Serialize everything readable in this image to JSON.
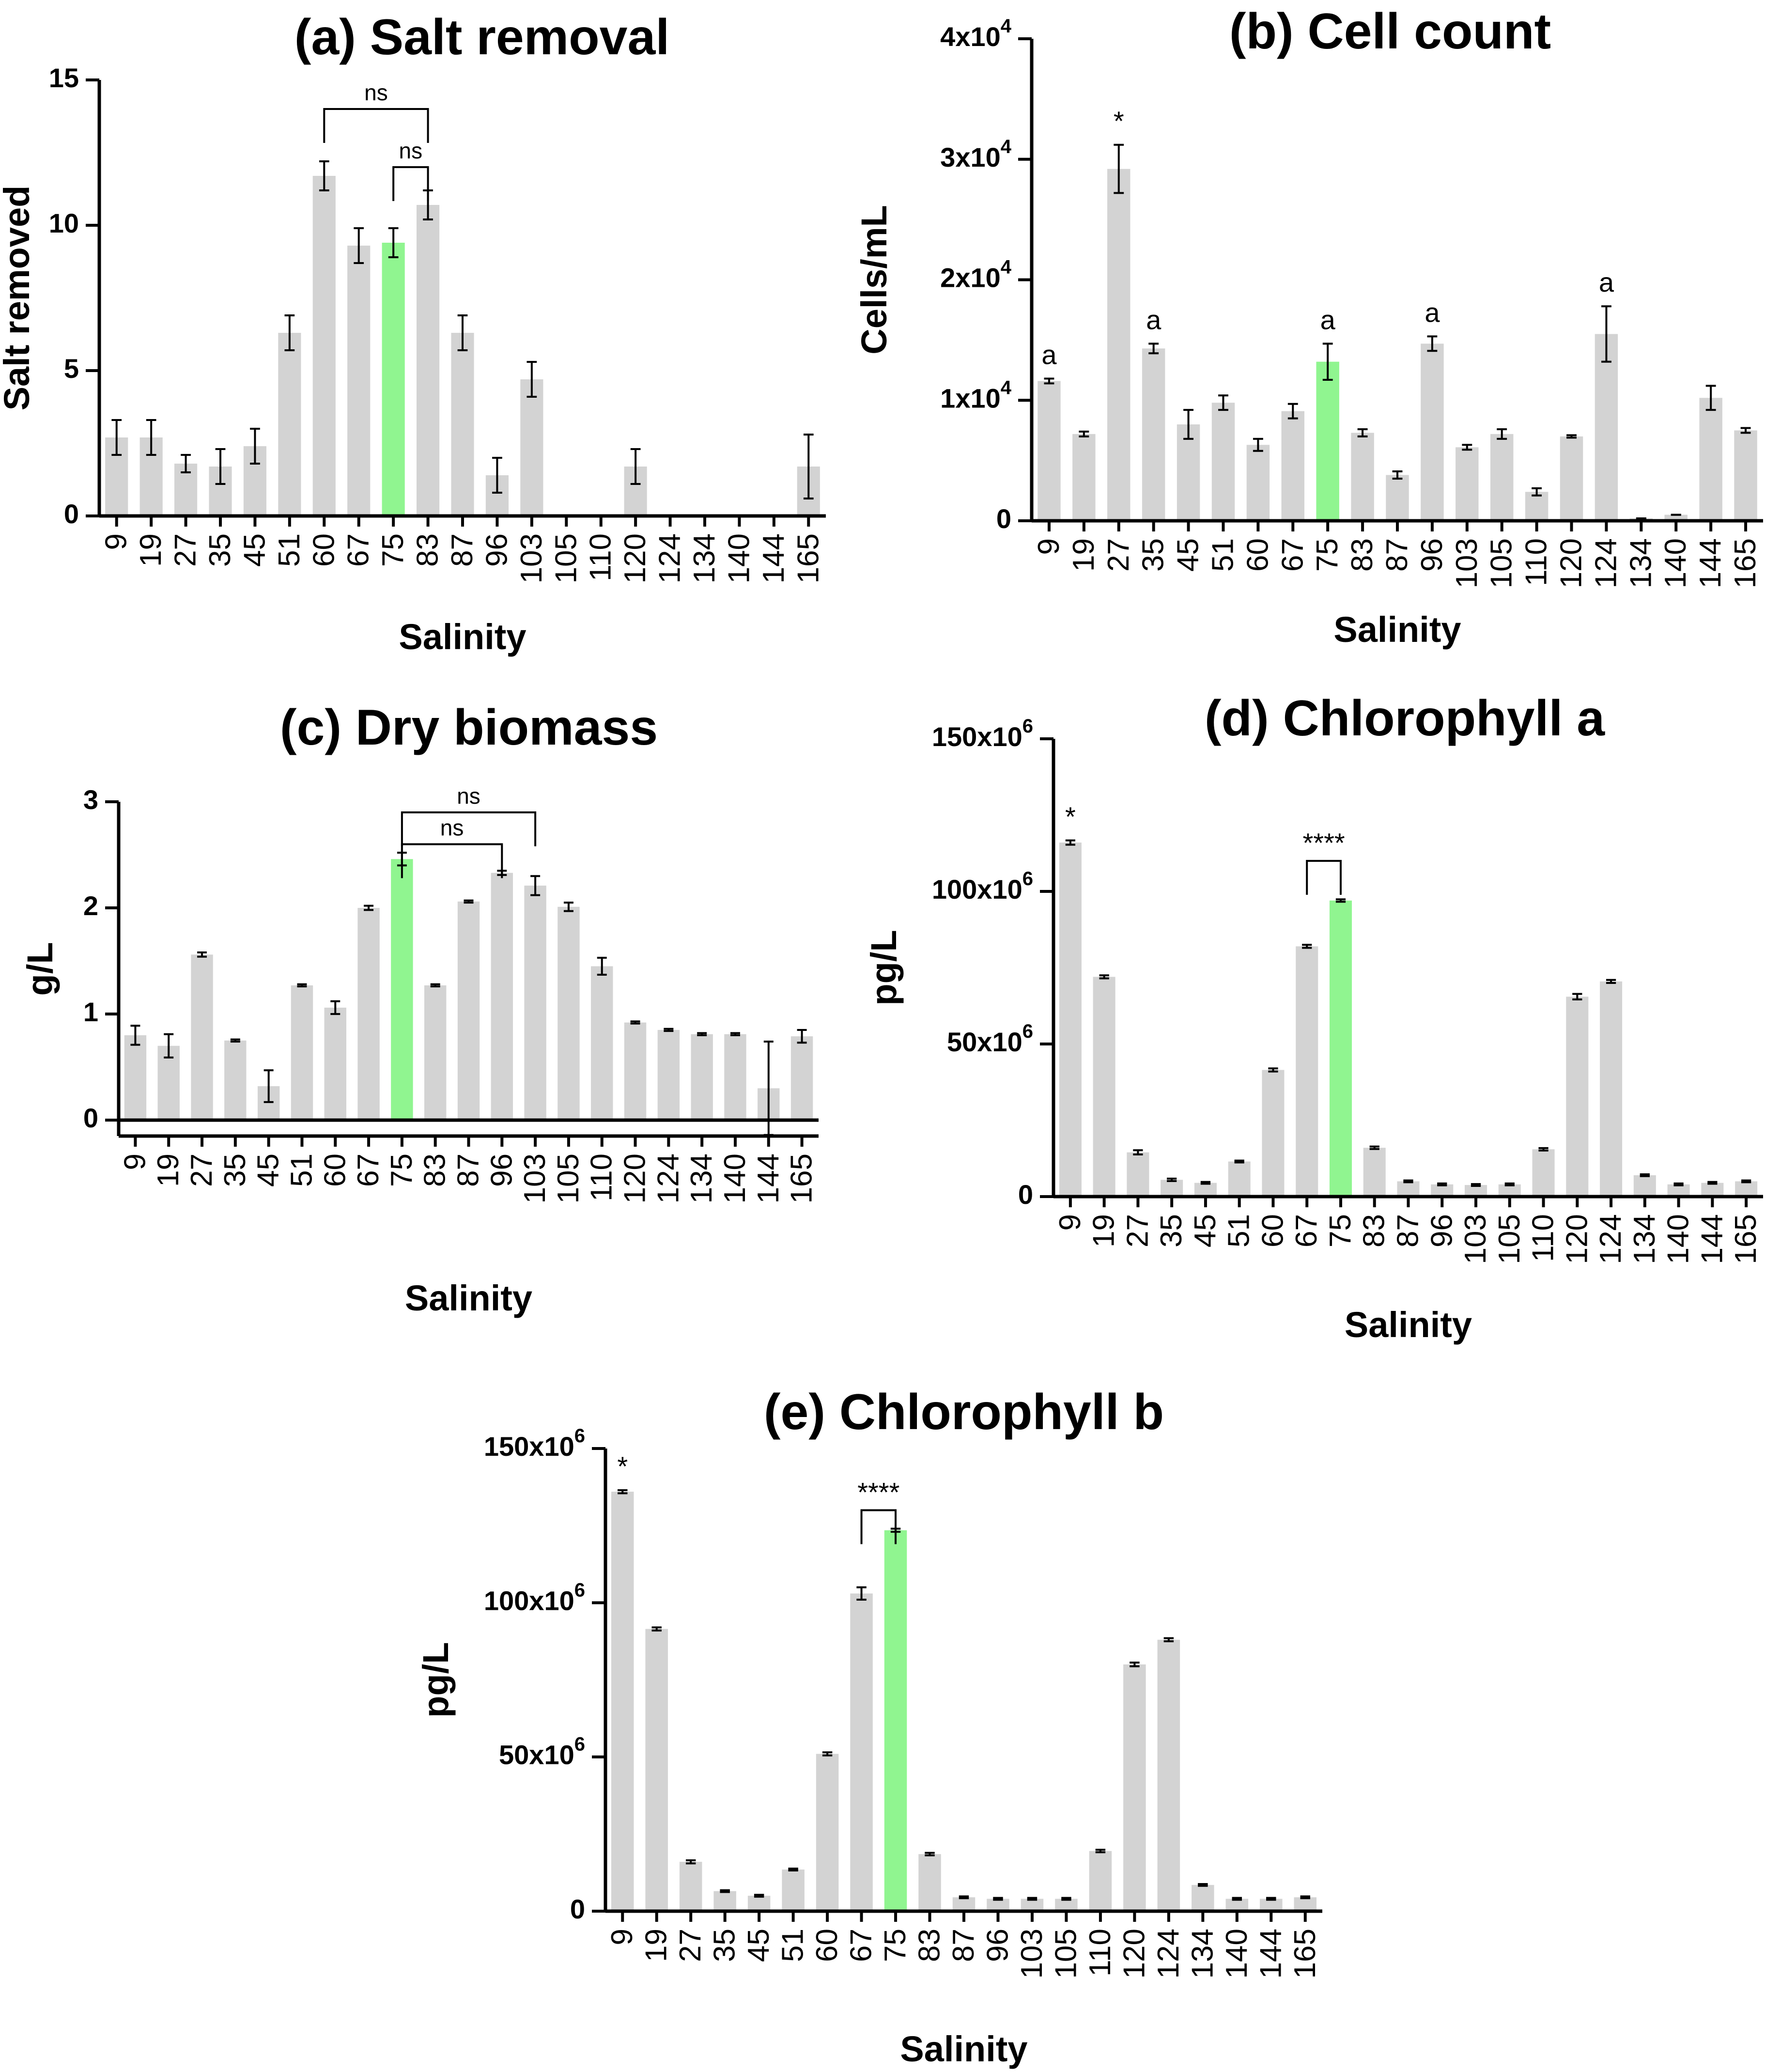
{
  "figure": {
    "colors": {
      "bar": "#d3d3d3",
      "highlight": "#90f590",
      "axis": "#000000"
    },
    "chart_data": [
      {
        "id": "a",
        "type": "bar",
        "title": "(a) Salt removal",
        "xlabel": "Salinity",
        "ylabel": "Salt removed",
        "ylim": [
          0,
          15
        ],
        "yticks": [
          0,
          5,
          10,
          15
        ],
        "ytick_labels": [
          "0",
          "5",
          "10",
          "15"
        ],
        "categories": [
          "9",
          "19",
          "27",
          "35",
          "45",
          "51",
          "60",
          "67",
          "75",
          "83",
          "87",
          "96",
          "103",
          "105",
          "110",
          "120",
          "124",
          "134",
          "140",
          "144",
          "165"
        ],
        "values": [
          2.7,
          2.7,
          1.8,
          1.7,
          2.4,
          6.3,
          11.7,
          9.3,
          9.4,
          10.7,
          6.3,
          1.4,
          4.7,
          0,
          0,
          1.7,
          0,
          0,
          0,
          0,
          1.7
        ],
        "errors": [
          0.6,
          0.6,
          0.3,
          0.6,
          0.6,
          0.6,
          0.5,
          0.6,
          0.5,
          0.5,
          0.6,
          0.6,
          0.6,
          0,
          0,
          0.6,
          0,
          0,
          0,
          0,
          1.1
        ],
        "highlight": "75",
        "annotations": [
          {
            "from": "60",
            "to": "83",
            "label": "ns",
            "level": 14.0
          },
          {
            "from": "75",
            "to": "83",
            "label": "ns",
            "level": 12.0
          }
        ]
      },
      {
        "id": "b",
        "type": "bar",
        "title": "(b) Cell count",
        "xlabel": "Salinity",
        "ylabel": "Cells/mL",
        "ylim": [
          0,
          40000
        ],
        "yticks": [
          0,
          10000,
          20000,
          30000,
          40000
        ],
        "ytick_labels": [
          "0",
          "1x10^4",
          "2x10^4",
          "3x10^4",
          "4x10^4"
        ],
        "categories": [
          "9",
          "19",
          "27",
          "35",
          "45",
          "51",
          "60",
          "67",
          "75",
          "83",
          "87",
          "96",
          "103",
          "105",
          "110",
          "120",
          "124",
          "134",
          "140",
          "144",
          "165"
        ],
        "values": [
          11600,
          7200,
          29200,
          14300,
          8000,
          9800,
          6300,
          9100,
          13200,
          7300,
          3800,
          14700,
          6100,
          7200,
          2400,
          7000,
          15500,
          200,
          500,
          10200,
          7500
        ],
        "errors": [
          200,
          200,
          2000,
          400,
          1200,
          600,
          500,
          600,
          1500,
          300,
          300,
          600,
          200,
          400,
          300,
          100,
          2300,
          0,
          0,
          1000,
          200
        ],
        "highlight": "75",
        "letters": [
          {
            "category": "9",
            "label": "a"
          },
          {
            "category": "27",
            "label": "*"
          },
          {
            "category": "35",
            "label": "a"
          },
          {
            "category": "75",
            "label": "a"
          },
          {
            "category": "96",
            "label": "a"
          },
          {
            "category": "124",
            "label": "a"
          }
        ]
      },
      {
        "id": "c",
        "type": "bar",
        "title": "(c) Dry biomass",
        "xlabel": "Salinity",
        "ylabel": "g/L",
        "ylim": [
          -0.15,
          3
        ],
        "yticks": [
          0,
          1,
          2,
          3
        ],
        "ytick_labels": [
          "0",
          "1",
          "2",
          "3"
        ],
        "categories": [
          "9",
          "19",
          "27",
          "35",
          "45",
          "51",
          "60",
          "67",
          "75",
          "83",
          "87",
          "96",
          "103",
          "105",
          "110",
          "120",
          "124",
          "134",
          "140",
          "144",
          "165"
        ],
        "values": [
          0.8,
          0.7,
          1.56,
          0.75,
          0.32,
          1.27,
          1.06,
          2.0,
          2.46,
          1.27,
          2.06,
          2.33,
          2.21,
          2.01,
          1.45,
          0.92,
          0.85,
          0.81,
          0.81,
          0.3,
          0.79
        ],
        "errors": [
          0.09,
          0.11,
          0.02,
          0.01,
          0.15,
          0.01,
          0.06,
          0.02,
          0.06,
          0.01,
          0.01,
          0.02,
          0.09,
          0.04,
          0.08,
          0.01,
          0.01,
          0.01,
          0.01,
          0.44,
          0.06
        ],
        "highlight": "75",
        "annotations": [
          {
            "from": "75",
            "to": "103",
            "label": "ns",
            "level": 2.9
          },
          {
            "from": "75",
            "to": "96",
            "label": "ns",
            "level": 2.6
          }
        ]
      },
      {
        "id": "d",
        "type": "bar",
        "title": "(d) Chlorophyll a",
        "xlabel": "Salinity",
        "ylabel": "pg/L",
        "ylim": [
          0,
          150000000
        ],
        "yticks": [
          0,
          50000000,
          100000000,
          150000000
        ],
        "ytick_labels": [
          "0",
          "50x10^6",
          "100x10^6",
          "150x10^6"
        ],
        "categories": [
          "9",
          "19",
          "27",
          "35",
          "45",
          "51",
          "60",
          "67",
          "75",
          "83",
          "87",
          "96",
          "103",
          "105",
          "110",
          "120",
          "124",
          "134",
          "140",
          "144",
          "165"
        ],
        "values": [
          116000000,
          72000000,
          14500000,
          5500000,
          4500000,
          11500000,
          41500000,
          82000000,
          97000000,
          16000000,
          5000000,
          4000000,
          3800000,
          4000000,
          15500000,
          65500000,
          70500000,
          7000000,
          4000000,
          4500000,
          5000000
        ],
        "errors": [
          700000,
          500000,
          700000,
          400000,
          300000,
          300000,
          500000,
          500000,
          400000,
          400000,
          300000,
          300000,
          300000,
          300000,
          400000,
          900000,
          500000,
          300000,
          300000,
          300000,
          300000
        ],
        "highlight": "75",
        "letters": [
          {
            "category": "9",
            "label": "*"
          }
        ],
        "annotations": [
          {
            "from": "67",
            "to": "75",
            "label": "****",
            "level": 110000000
          }
        ]
      },
      {
        "id": "e",
        "type": "bar",
        "title": "(e) Chlorophyll b",
        "xlabel": "Salinity",
        "ylabel": "pg/L",
        "ylim": [
          0,
          150000000
        ],
        "yticks": [
          0,
          50000000,
          100000000,
          150000000
        ],
        "ytick_labels": [
          "0",
          "50x10^6",
          "100x10^6",
          "150x10^6"
        ],
        "categories": [
          "9",
          "19",
          "27",
          "35",
          "45",
          "51",
          "60",
          "67",
          "75",
          "83",
          "87",
          "96",
          "103",
          "105",
          "110",
          "120",
          "124",
          "134",
          "140",
          "144",
          "165"
        ],
        "values": [
          136000000,
          91500000,
          16000000,
          6500000,
          5000000,
          13500000,
          51000000,
          103000000,
          123500000,
          18500000,
          4500000,
          4000000,
          4000000,
          4000000,
          19500000,
          80000000,
          88000000,
          8500000,
          4000000,
          4000000,
          4500000
        ],
        "errors": [
          500000,
          500000,
          500000,
          300000,
          300000,
          300000,
          500000,
          2000000,
          500000,
          400000,
          300000,
          300000,
          300000,
          300000,
          400000,
          600000,
          500000,
          300000,
          300000,
          300000,
          300000
        ],
        "highlight": "75",
        "letters": [
          {
            "category": "9",
            "label": "*"
          }
        ],
        "annotations": [
          {
            "from": "67",
            "to": "75",
            "label": "****",
            "level": 130000000
          }
        ]
      }
    ]
  }
}
